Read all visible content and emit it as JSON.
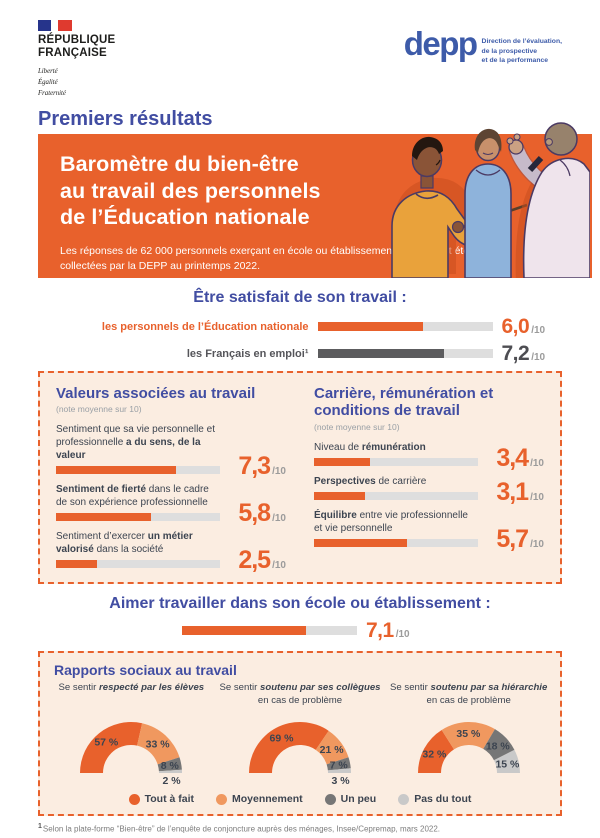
{
  "colors": {
    "orange": "#E8612C",
    "orange_light": "#F0985F",
    "gray_dark": "#767676",
    "gray_light": "#C9C9C9",
    "track": "#DEDEDE",
    "bar_dark": "#5C5C5E",
    "blue": "#414DA2",
    "deppblue": "#3D5BA9",
    "ink": "#3C4450",
    "peach": "#FBEDE1"
  },
  "per10": "/10",
  "header": {
    "marianne": {
      "republique": "RÉPUBLIQUE",
      "francaise": "FRANÇAISE",
      "motto": [
        "Liberté",
        "Égalité",
        "Fraternité"
      ]
    },
    "depp": {
      "name": "depp",
      "tagline": [
        "Direction de l’évaluation,",
        "de la prospective",
        "et de la performance"
      ]
    }
  },
  "kicker": "Premiers résultats",
  "banner": {
    "title_lines": [
      "Baromètre du bien-être",
      "au travail des personnels",
      "de l’Éducation nationale"
    ],
    "subtitle": "Les réponses de 62 000 personnels exerçant en école ou établissement scolaire ont été collectées par la DEPP au printemps 2022."
  },
  "satisfaction": {
    "heading": "Être satisfait de son travail :",
    "rows": [
      {
        "label": "les personnels de l’Éducation nationale",
        "display": "6,0",
        "value": 6.0,
        "style": "orange"
      },
      {
        "label": "les Français en emploi¹",
        "display": "7,2",
        "value": 7.2,
        "style": "dark"
      }
    ]
  },
  "values_box": {
    "left": {
      "heading": "Valeurs associées au travail",
      "note": "(note moyenne sur 10)",
      "items": [
        {
          "label_parts": [
            {
              "t": "Sentiment que sa vie personnelle et professionnelle "
            },
            {
              "t": "a du sens, de la valeur",
              "b": true
            }
          ],
          "display": "7,3",
          "value": 7.3
        },
        {
          "label_parts": [
            {
              "t": "Sentiment de fierté",
              "b": true
            },
            {
              "t": " dans le cadre de son expérience professionnelle"
            }
          ],
          "display": "5,8",
          "value": 5.8
        },
        {
          "label_parts": [
            {
              "t": "Sentiment d’exercer "
            },
            {
              "t": "un métier valorisé",
              "b": true
            },
            {
              "t": " dans la société"
            }
          ],
          "display": "2,5",
          "value": 2.5
        }
      ]
    },
    "right": {
      "heading": "Carrière, rémunération et conditions de travail",
      "note": "(note moyenne sur 10)",
      "items": [
        {
          "label_parts": [
            {
              "t": "Niveau de "
            },
            {
              "t": "rémunération",
              "b": true
            }
          ],
          "display": "3,4",
          "value": 3.4
        },
        {
          "label_parts": [
            {
              "t": "Perspectives",
              "b": true
            },
            {
              "t": " de carrière"
            }
          ],
          "display": "3,1",
          "value": 3.1
        },
        {
          "label_parts": [
            {
              "t": "Équilibre",
              "b": true
            },
            {
              "t": " entre vie professionnelle et vie personnelle"
            }
          ],
          "display": "5,7",
          "value": 5.7
        }
      ]
    }
  },
  "aimer": {
    "heading": "Aimer travailler dans son école ou établissement :",
    "display": "7,1",
    "value": 7.1
  },
  "rapports": {
    "heading": "Rapports sociaux au travail",
    "pct_suffix": " %",
    "gauges": [
      {
        "title_parts": [
          {
            "t": "Se sentir "
          },
          {
            "t": "respecté par les élèves",
            "em": true
          }
        ],
        "subtitle": "",
        "values": [
          57,
          33,
          8,
          2
        ]
      },
      {
        "title_parts": [
          {
            "t": "Se sentir "
          },
          {
            "t": "soutenu par ses collègues",
            "em": true
          }
        ],
        "subtitle": "en cas de problème",
        "values": [
          69,
          21,
          7,
          3
        ]
      },
      {
        "title_parts": [
          {
            "t": "Se sentir "
          },
          {
            "t": "soutenu par sa hiérarchie",
            "em": true
          }
        ],
        "subtitle": "en cas de problème",
        "values": [
          32,
          35,
          18,
          15
        ]
      }
    ],
    "legend": [
      {
        "label": "Tout à fait",
        "color": "orange"
      },
      {
        "label": "Moyennement",
        "color": "orange_light"
      },
      {
        "label": "Un peu",
        "color": "gray_dark"
      },
      {
        "label": "Pas du tout",
        "color": "gray_light"
      }
    ]
  },
  "footnote": {
    "sup": "1",
    "text": "Selon la plate-forme “Bien-être” de l’enquête de conjoncture auprès des ménages, Insee/Cepremap, mars 2022."
  },
  "chart_data": [
    {
      "type": "bar",
      "title": "Être satisfait de son travail (note moyenne sur 10)",
      "categories": [
        "les personnels de l’Éducation nationale",
        "les Français en emploi"
      ],
      "values": [
        6.0,
        7.2
      ],
      "xlabel": "",
      "ylabel": "note moyenne",
      "ylim": [
        0,
        10
      ],
      "legend_position": "none"
    },
    {
      "type": "bar",
      "title": "Valeurs associées au travail (note moyenne sur 10)",
      "categories": [
        "Sentiment que sa vie personnelle et professionnelle a du sens, de la valeur",
        "Sentiment de fierté dans le cadre de son expérience professionnelle",
        "Sentiment d’exercer un métier valorisé dans la société"
      ],
      "values": [
        7.3,
        5.8,
        2.5
      ],
      "xlabel": "",
      "ylabel": "note moyenne",
      "ylim": [
        0,
        10
      ]
    },
    {
      "type": "bar",
      "title": "Carrière, rémunération et conditions de travail (note moyenne sur 10)",
      "categories": [
        "Niveau de rémunération",
        "Perspectives de carrière",
        "Équilibre entre vie professionnelle et vie personnelle"
      ],
      "values": [
        3.4,
        3.1,
        5.7
      ],
      "xlabel": "",
      "ylabel": "note moyenne",
      "ylim": [
        0,
        10
      ]
    },
    {
      "type": "bar",
      "title": "Aimer travailler dans son école ou établissement",
      "categories": [
        "note moyenne"
      ],
      "values": [
        7.1
      ],
      "xlabel": "",
      "ylabel": "note moyenne",
      "ylim": [
        0,
        10
      ]
    },
    {
      "type": "pie",
      "title": "Se sentir respecté par les élèves",
      "categories": [
        "Tout à fait",
        "Moyennement",
        "Un peu",
        "Pas du tout"
      ],
      "values": [
        57,
        33,
        8,
        2
      ],
      "layout": "half-donut, legend bottom"
    },
    {
      "type": "pie",
      "title": "Se sentir soutenu par ses collègues en cas de problème",
      "categories": [
        "Tout à fait",
        "Moyennement",
        "Un peu",
        "Pas du tout"
      ],
      "values": [
        69,
        21,
        7,
        3
      ],
      "layout": "half-donut, legend bottom"
    },
    {
      "type": "pie",
      "title": "Se sentir soutenu par sa hiérarchie en cas de problème",
      "categories": [
        "Tout à fait",
        "Moyennement",
        "Un peu",
        "Pas du tout"
      ],
      "values": [
        32,
        35,
        18,
        15
      ],
      "layout": "half-donut, legend bottom"
    }
  ]
}
